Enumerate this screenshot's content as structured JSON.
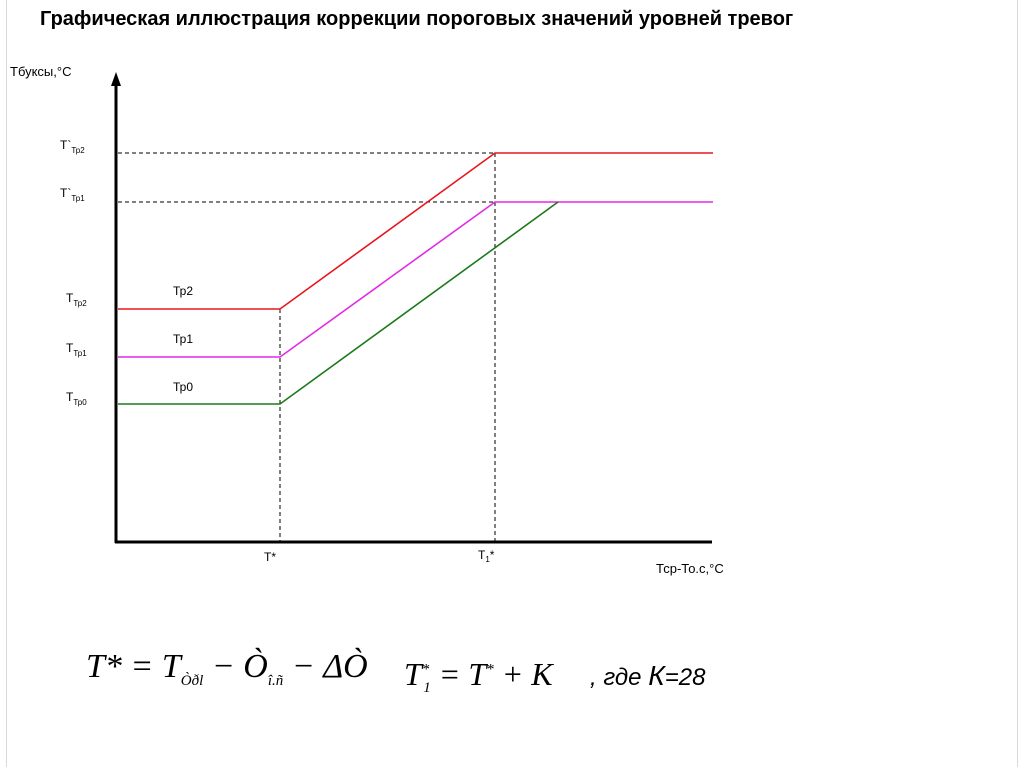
{
  "title": "Графическая иллюстрация коррекции пороговых значений уровней тревог",
  "y_axis_title": "Тбуксы,°С",
  "x_axis_title": "Тср-То.с,°С",
  "y_ticks": [
    {
      "main": "T`",
      "sub": "Тр2"
    },
    {
      "main": "T`",
      "sub": "Тр1"
    },
    {
      "main": "T",
      "sub": "Тр2"
    },
    {
      "main": "T",
      "sub": "Тр1"
    },
    {
      "main": "T",
      "sub": "Тр0"
    }
  ],
  "x_ticks": [
    {
      "main": "T*",
      "sub": ""
    },
    {
      "main": "T",
      "sub": "1",
      "sup": "*"
    }
  ],
  "series": [
    {
      "name": "Тр2",
      "color": "#e8161e"
    },
    {
      "name": "Тр1",
      "color": "#e22ae6"
    },
    {
      "name": "Тр0",
      "color": "#1c7a1c"
    }
  ],
  "formula1": {
    "lhs": "T*",
    "eq": "=",
    "t": "T",
    "t_sub": "Òðl",
    "minus1": "−",
    "o1": "Ò",
    "o1_sub": "î.ñ",
    "minus2": "−",
    "delta": "ΔÒ"
  },
  "formula2": {
    "lhs": "T",
    "lhs_sub": "1",
    "lhs_sup": "*",
    "eq": "=",
    "t": "T",
    "t_sup": "*",
    "plus": "+",
    "k": "K"
  },
  "formula3": {
    "text": ", где ",
    "k": "К",
    "value": "=28"
  }
}
